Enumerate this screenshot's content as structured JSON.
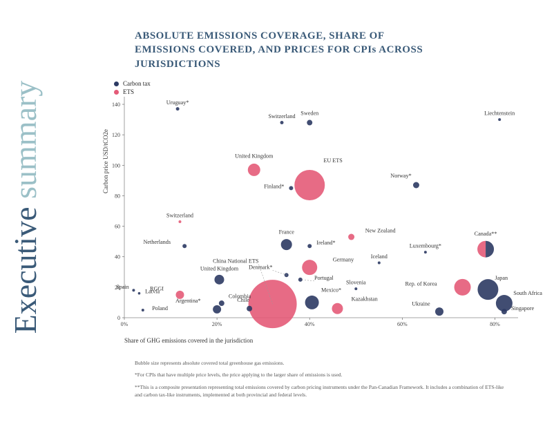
{
  "sideTitle": {
    "word1": "Executive",
    "word2": " summary"
  },
  "title": "ABSOLUTE EMISSIONS COVERAGE, SHARE OF EMISSIONS COVERED, AND PRICES FOR CPIs ACROSS JURISDICTIONS",
  "legend": {
    "items": [
      {
        "label": "Carbon tax",
        "color": "#2c3a63"
      },
      {
        "label": "ETS",
        "color": "#e45b78"
      }
    ]
  },
  "axes": {
    "xLabel": "Share of GHG emissions covered in the jurisdiction",
    "yLabel": "Carbon price USD/tCO2e",
    "xTicks": [
      0,
      20,
      40,
      60,
      80
    ],
    "yTicks": [
      0,
      20,
      40,
      60,
      80,
      100,
      120,
      140
    ],
    "xLim": [
      0,
      85
    ],
    "yLim": [
      0,
      145
    ]
  },
  "colors": {
    "carbonTax": "#2c3a63",
    "ets": "#e45b78",
    "brandText": "#3a5a78",
    "teal": "#9bc0c7",
    "grid": "#cccccc",
    "fnText": "#555555",
    "opacity": 0.9
  },
  "style": {
    "yLabel_fontsize": 9,
    "xLabel_fontsize": 9,
    "tick_fontsize": 8,
    "bubbleLabel_fontsize": 8.2,
    "title_fontsize": 15,
    "footnote_fontsize": 7.5,
    "sideTitle_fontsize": 46,
    "leader_stroke": "#bbbbbb",
    "dashed_stroke": "#999999",
    "dash_pattern": "2 2"
  },
  "footnotes": [
    "Bubble size represents absolute covered total greenhouse gas emissions.",
    "*For CPIs that have multiple price levels, the price applying to the larger share of emissions is used.",
    "**This is a composite presentation representing total emissions covered by carbon pricing instruments under the Pan-Canadian Framework. It includes a combination of ETS-like and carbon tax-like instruments, implemented at both provincial and federal levels."
  ],
  "bubbles": [
    {
      "label": "Uruguay*",
      "x": 11.5,
      "y": 137,
      "r": 2.5,
      "type": "tax",
      "lx": 11.5,
      "ly": 140,
      "anchor": "middle"
    },
    {
      "label": "Liechtenstein",
      "x": 81,
      "y": 130,
      "r": 2,
      "type": "tax",
      "lx": 81,
      "ly": 133,
      "anchor": "middle"
    },
    {
      "label": "Switzerland",
      "x": 34,
      "y": 128,
      "r": 2.5,
      "type": "tax",
      "lx": 34,
      "ly": 131,
      "anchor": "middle"
    },
    {
      "label": "Sweden",
      "x": 40,
      "y": 128,
      "r": 4,
      "type": "tax",
      "lx": 40,
      "ly": 133,
      "anchor": "middle"
    },
    {
      "label": "United Kingdom",
      "x": 28,
      "y": 97,
      "r": 9,
      "type": "ets",
      "lx": 28,
      "ly": 105,
      "anchor": "middle"
    },
    {
      "label": "EU ETS",
      "x": 40,
      "y": 87,
      "r": 22,
      "type": "ets",
      "lx": 43,
      "ly": 102,
      "anchor": "start"
    },
    {
      "label": "Finland*",
      "x": 36,
      "y": 85,
      "r": 3,
      "type": "tax",
      "lx": 34.5,
      "ly": 85,
      "anchor": "end"
    },
    {
      "label": "Norway*",
      "x": 63,
      "y": 87,
      "r": 4.5,
      "type": "tax",
      "lx": 62,
      "ly": 92,
      "anchor": "end"
    },
    {
      "label": "Switzerland",
      "x": 12,
      "y": 63,
      "r": 2,
      "type": "ets",
      "lx": 12,
      "ly": 66,
      "anchor": "middle"
    },
    {
      "label": "New Zealand",
      "x": 49,
      "y": 53,
      "r": 4.5,
      "type": "ets",
      "lx": 52,
      "ly": 56,
      "anchor": "start"
    },
    {
      "label": "Netherlands",
      "x": 13,
      "y": 47,
      "r": 3,
      "type": "tax",
      "lx": 10,
      "ly": 48.5,
      "anchor": "end"
    },
    {
      "label": "France",
      "x": 35,
      "y": 48,
      "r": 8,
      "type": "tax",
      "lx": 35,
      "ly": 55,
      "anchor": "middle"
    },
    {
      "label": "Ireland*",
      "x": 40,
      "y": 47,
      "r": 3,
      "type": "tax",
      "lx": 41.5,
      "ly": 48,
      "anchor": "start"
    },
    {
      "label": "Luxembourg*",
      "x": 65,
      "y": 43,
      "r": 2,
      "type": "tax",
      "lx": 65,
      "ly": 46,
      "anchor": "middle"
    },
    {
      "label": "Canada**",
      "x": 78,
      "y": 45,
      "r": 12,
      "type": "split",
      "lx": 78,
      "ly": 54,
      "anchor": "middle"
    },
    {
      "label": "Iceland",
      "x": 55,
      "y": 36,
      "r": 2,
      "type": "tax",
      "lx": 55,
      "ly": 39,
      "anchor": "middle"
    },
    {
      "label": "Germany",
      "x": 40,
      "y": 33,
      "r": 11,
      "type": "ets",
      "lx": 45,
      "ly": 37,
      "anchor": "start"
    },
    {
      "label": "China National ETS",
      "x": 32,
      "y": 9,
      "r": 35,
      "type": "ets",
      "lx": 29,
      "ly": 36,
      "anchor": "end",
      "dashedTo": [
        32,
        9
      ]
    },
    {
      "label": "Denmark*",
      "x": 35,
      "y": 28,
      "r": 3,
      "type": "tax",
      "lx": 32,
      "ly": 32,
      "anchor": "end",
      "dashedTo": [
        35,
        28
      ]
    },
    {
      "label": "United Kingdom",
      "x": 20.5,
      "y": 25,
      "r": 7,
      "type": "tax",
      "lx": 20.5,
      "ly": 31,
      "anchor": "middle"
    },
    {
      "label": "Portugal",
      "x": 38,
      "y": 25,
      "r": 3,
      "type": "tax",
      "lx": 41,
      "ly": 25,
      "anchor": "start",
      "dashedTo": [
        38,
        25
      ]
    },
    {
      "label": "Slovenia",
      "x": 50,
      "y": 19,
      "r": 2,
      "type": "tax",
      "lx": 50,
      "ly": 22,
      "anchor": "middle"
    },
    {
      "label": "Rep. of Korea",
      "x": 73,
      "y": 20,
      "r": 12,
      "type": "ets",
      "lx": 67.5,
      "ly": 21,
      "anchor": "end"
    },
    {
      "label": "Japan",
      "x": 78.5,
      "y": 18.5,
      "r": 15,
      "type": "tax",
      "lx": 80,
      "ly": 25,
      "anchor": "start"
    },
    {
      "label": "Spain",
      "x": 2,
      "y": 18,
      "r": 2,
      "type": "tax",
      "lx": 1,
      "ly": 19,
      "anchor": "end"
    },
    {
      "label": "Latvia",
      "x": 3.2,
      "y": 16,
      "r": 1.8,
      "type": "tax",
      "lx": 4.5,
      "ly": 16,
      "anchor": "start"
    },
    {
      "label": "RGGI",
      "x": 12,
      "y": 15,
      "r": 6,
      "type": "ets",
      "lx": 8.5,
      "ly": 18,
      "anchor": "end"
    },
    {
      "label": "Colombia",
      "x": 21,
      "y": 9.5,
      "r": 4,
      "type": "tax",
      "lx": 22.5,
      "ly": 13,
      "anchor": "start"
    },
    {
      "label": "Argentina*",
      "x": 20,
      "y": 5.5,
      "r": 6,
      "type": "tax",
      "lx": 16.5,
      "ly": 10,
      "anchor": "end"
    },
    {
      "label": "Chile",
      "x": 27,
      "y": 6,
      "r": 4,
      "type": "tax",
      "lx": 27,
      "ly": 10.5,
      "anchor": "end"
    },
    {
      "label": "Mexico*",
      "x": 40.5,
      "y": 10,
      "r": 10,
      "type": "tax",
      "lx": 42.5,
      "ly": 17,
      "anchor": "start"
    },
    {
      "label": "Kazakhstan",
      "x": 46,
      "y": 6,
      "r": 8,
      "type": "ets",
      "lx": 49,
      "ly": 11,
      "anchor": "start"
    },
    {
      "label": "Poland",
      "x": 4,
      "y": 5,
      "r": 2,
      "type": "tax",
      "lx": 6,
      "ly": 5,
      "anchor": "start"
    },
    {
      "label": "Ukraine",
      "x": 68,
      "y": 4,
      "r": 6,
      "type": "tax",
      "lx": 66,
      "ly": 8,
      "anchor": "end"
    },
    {
      "label": "South Africa",
      "x": 82,
      "y": 9.5,
      "r": 12,
      "type": "tax",
      "lx": 84,
      "ly": 15,
      "anchor": "start"
    },
    {
      "label": "Singapore",
      "x": 82,
      "y": 4,
      "r": 4,
      "type": "tax",
      "lx": 83.5,
      "ly": 5,
      "anchor": "start"
    }
  ]
}
